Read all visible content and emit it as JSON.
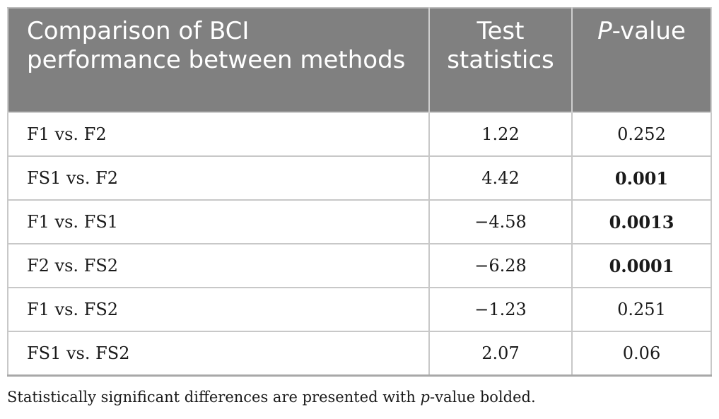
{
  "table": {
    "headers": {
      "col1": "Comparison of BCI performance between methods",
      "col2": "Test statistics",
      "col3_italic": "P",
      "col3_rest": "-value"
    },
    "rows": [
      {
        "comparison": "F1 vs. F2",
        "statistic": "1.22",
        "p_value": "0.252",
        "significant": false
      },
      {
        "comparison": "FS1 vs. F2",
        "statistic": "4.42",
        "p_value": "0.001",
        "significant": true
      },
      {
        "comparison": "F1 vs. FS1",
        "statistic": "−4.58",
        "p_value": "0.0013",
        "significant": true
      },
      {
        "comparison": "F2 vs. FS2",
        "statistic": "−6.28",
        "p_value": "0.0001",
        "significant": true
      },
      {
        "comparison": "F1 vs. FS2",
        "statistic": "−1.23",
        "p_value": "0.251",
        "significant": false
      },
      {
        "comparison": "FS1 vs. FS2",
        "statistic": "2.07",
        "p_value": "0.06",
        "significant": false
      }
    ]
  },
  "footnote": {
    "before": "Statistically significant differences are presented with ",
    "italic": "p",
    "after": "-value bolded."
  },
  "colors": {
    "header_background": "#808080",
    "header_text": "#ffffff",
    "border": "#c8c8c8"
  }
}
